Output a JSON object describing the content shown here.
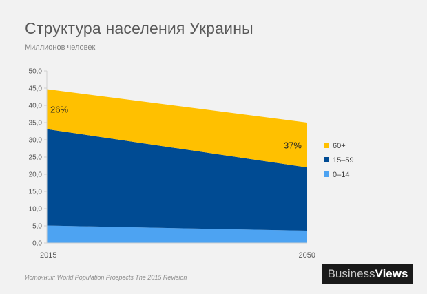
{
  "chart_data": {
    "type": "area",
    "stacked": true,
    "title": "Структура населения Украины",
    "subtitle": "Миллионов человек",
    "x": [
      "2015",
      "2050"
    ],
    "ylim": [
      0,
      50
    ],
    "y_ticks": [
      "0,0",
      "5,0",
      "10,0",
      "15,0",
      "20,0",
      "25,0",
      "30,0",
      "35,0",
      "40,0",
      "45,0",
      "50,0"
    ],
    "grid": false,
    "legend_position": "right",
    "series": [
      {
        "name": "0–14",
        "values": [
          5.1,
          3.6
        ],
        "color": "#4da3f2"
      },
      {
        "name": "15–59",
        "values": [
          28.0,
          18.4
        ],
        "color": "#004b93"
      },
      {
        "name": "60+",
        "values": [
          11.6,
          13.0
        ],
        "color": "#ffc000"
      }
    ],
    "annotations": [
      "26%",
      "37%"
    ]
  },
  "legend_order": [
    2,
    1,
    0
  ],
  "source": "Источник:  World Population Prospects The 2015 Revision",
  "brand": {
    "part1": "Business",
    "part2": "Views"
  }
}
